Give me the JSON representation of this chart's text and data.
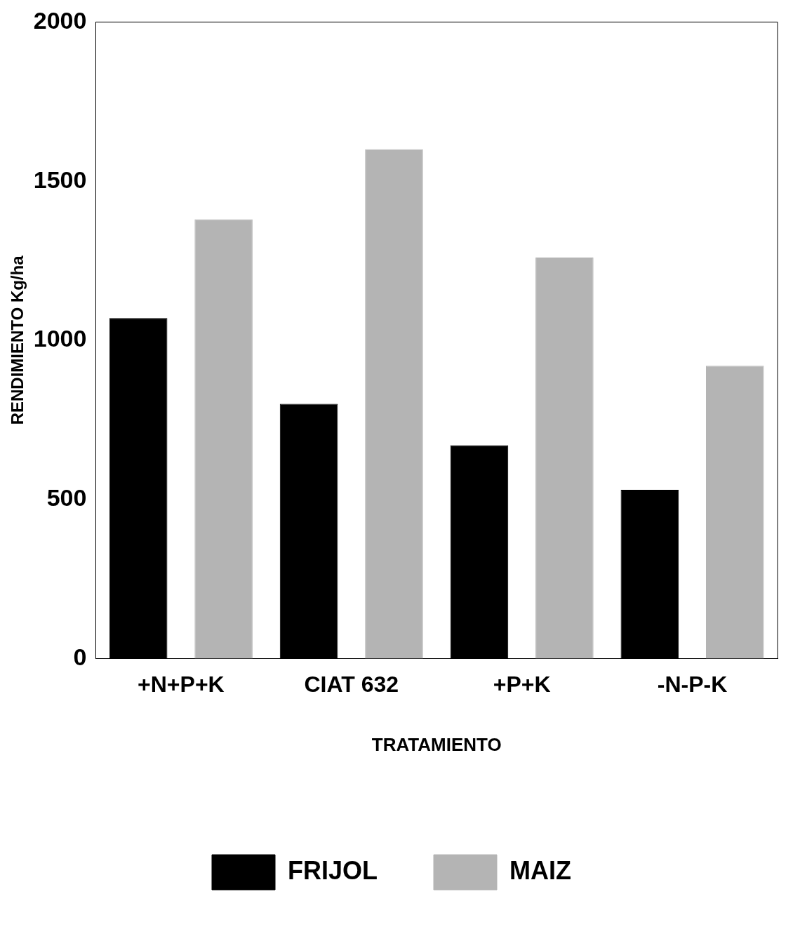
{
  "chart_data": {
    "type": "bar",
    "xlabel": "TRATAMIENTO",
    "ylabel": "RENDIMIENTO Kg/ha",
    "categories": [
      "+N+P+K",
      "CIAT 632",
      "+P+K",
      "-N-P-K"
    ],
    "series": [
      {
        "name": "FRIJOL",
        "color": "#000000",
        "values": [
          1070,
          800,
          670,
          530
        ]
      },
      {
        "name": "MAIZ",
        "color": "#b4b4b4",
        "values": [
          1380,
          1600,
          1260,
          920
        ]
      }
    ],
    "ylim": [
      0,
      2000
    ],
    "yticks": [
      0,
      500,
      1000,
      1500,
      2000
    ],
    "grid": false,
    "legend": "bottom"
  }
}
